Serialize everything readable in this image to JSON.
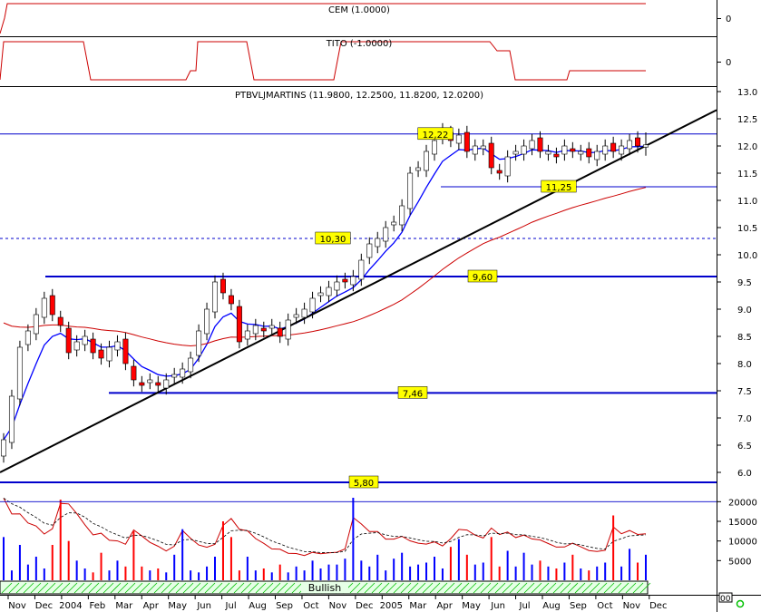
{
  "panels": {
    "cem": {
      "label": "CEM (1.0000)",
      "axis_ticks": [
        "0"
      ]
    },
    "tito": {
      "label": "TITO (-1.0000)",
      "axis_ticks": [
        "0"
      ]
    },
    "price": {
      "title": "PTBVLJMARTINS (11.9800, 12.2500, 11.8200, 12.0200)"
    },
    "volume": {
      "axis_ticks": [
        "20000",
        "15000",
        "10000",
        "5000"
      ],
      "scale_marker": "00"
    }
  },
  "status_bar": {
    "label": "Bullish",
    "color": "#00c000"
  },
  "x_axis": {
    "months": [
      "Nov",
      "Dec",
      "2004",
      "Feb",
      "Mar",
      "Apr",
      "May",
      "Jun",
      "Jul",
      "Aug",
      "Sep",
      "Oct",
      "Nov",
      "Dec",
      "2005",
      "Mar",
      "Apr",
      "May",
      "Jun",
      "Jul",
      "Aug",
      "Sep",
      "Oct",
      "Nov",
      "Dec"
    ]
  },
  "colors": {
    "up_candle": "#ffffff",
    "down_candle": "#ff0000",
    "moving_average_fast": "#0000ff",
    "moving_average_slow": "#cc0000",
    "support_lines": "#0000cc",
    "trendline": "#000000",
    "label_background": "#ffff00"
  },
  "chart_data": {
    "type": "candlestick",
    "title": "PTBVLJMARTINS (11.9800, 12.2500, 11.8200, 12.0200)",
    "y_axis": {
      "ylim": [
        5.8,
        13.0
      ],
      "ticks": [
        "13.0",
        "12.5",
        "12.0",
        "11.5",
        "11.0",
        "10.5",
        "10.0",
        "9.5",
        "9.0",
        "8.5",
        "8.0",
        "7.5",
        "7.0",
        "6.5",
        "6.0"
      ]
    },
    "last_bar": {
      "open": 11.98,
      "high": 12.25,
      "low": 11.82,
      "close": 12.02
    },
    "levels": [
      {
        "label": "12,22",
        "value": 12.22,
        "style": "solid"
      },
      {
        "label": "11,25",
        "value": 11.25,
        "style": "solid"
      },
      {
        "label": "10,30",
        "value": 10.3,
        "style": "dashed"
      },
      {
        "label": "9,60",
        "value": 9.6,
        "style": "solid-thick"
      },
      {
        "label": "7,46",
        "value": 7.46,
        "style": "solid-thick"
      },
      {
        "label": "5,80",
        "value": 5.8,
        "style": "solid-thick"
      }
    ],
    "trendline": {
      "from": {
        "bar": 0,
        "value": 6.0
      },
      "to": {
        "bar": 79,
        "value": 12.0
      }
    },
    "closes": [
      6.6,
      7.4,
      8.3,
      8.6,
      8.9,
      9.2,
      8.9,
      8.7,
      8.2,
      8.4,
      8.5,
      8.2,
      8.1,
      8.3,
      8.4,
      8.0,
      7.7,
      7.6,
      7.7,
      7.6,
      7.7,
      7.8,
      7.9,
      8.1,
      8.6,
      9.0,
      9.5,
      9.3,
      9.1,
      8.4,
      8.6,
      8.7,
      8.6,
      8.7,
      8.5,
      8.8,
      8.9,
      9.0,
      9.2,
      9.3,
      9.4,
      9.5,
      9.5,
      9.6,
      9.9,
      10.2,
      10.3,
      10.5,
      10.6,
      10.9,
      11.5,
      11.6,
      11.9,
      12.1,
      12.3,
      12.1,
      12.2,
      11.9,
      12.0,
      12.0,
      11.6,
      11.5,
      11.8,
      11.9,
      12.0,
      12.1,
      11.9,
      11.9,
      11.8,
      12.0,
      11.9,
      11.9,
      11.8,
      11.9,
      12.0,
      11.9,
      12.0,
      12.1,
      12.0,
      12.02
    ],
    "series": [
      {
        "values": "ma_fast",
        "role": "fast moving average"
      },
      {
        "values": "ma_slow",
        "role": "slow moving average"
      }
    ],
    "volume": [
      11000,
      2500,
      9000,
      4000,
      6000,
      3000,
      9000,
      20500,
      10000,
      5000,
      3000,
      2000,
      7000,
      2500,
      5000,
      3500,
      12500,
      3500,
      2500,
      3000,
      2000,
      6500,
      13000,
      2500,
      2000,
      3500,
      6000,
      15000,
      11000,
      2500,
      6000,
      2500,
      3000,
      2000,
      4000,
      2000,
      3500,
      2500,
      5000,
      3000,
      4000,
      4000,
      5500,
      21000,
      5000,
      3500,
      6500,
      2500,
      5500,
      7000,
      3500,
      4000,
      4500,
      6000,
      3000,
      8500,
      10500,
      6500,
      4000,
      4500,
      11000,
      3500,
      7500,
      3500,
      7000,
      4000,
      5000,
      3500,
      3000,
      4500,
      6500,
      3000,
      2500,
      3500,
      4500,
      16500,
      3500,
      8000,
      4500,
      6500
    ]
  }
}
